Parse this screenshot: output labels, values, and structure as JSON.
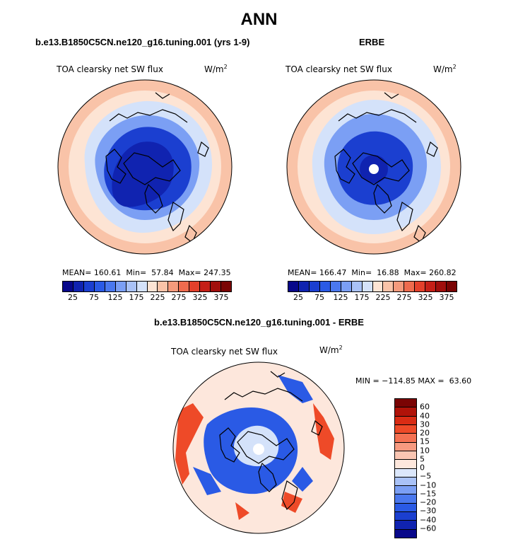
{
  "title": "ANN",
  "panels": [
    {
      "case": "b.e13.B1850C5CN.ne120_g16.tuning.001 (yrs 1-9)",
      "variable": "TOA clearsky net SW flux",
      "units_base": "W/m",
      "units_exp": "2",
      "mean_label": "MEAN=",
      "mean": "160.61",
      "min_label": "Min=",
      "min": "57.84",
      "max_label": "Max=",
      "max": "247.35"
    },
    {
      "case": "ERBE",
      "variable": "TOA clearsky net SW flux",
      "units_base": "W/m",
      "units_exp": "2",
      "mean_label": "MEAN=",
      "mean": "166.47",
      "min_label": "Min=",
      "min": "16.88",
      "max_label": "Max=",
      "max": "260.82"
    }
  ],
  "diff": {
    "case": "b.e13.B1850C5CN.ne120_g16.tuning.001 - ERBE",
    "variable": "TOA clearsky net SW flux",
    "units_base": "W/m",
    "units_exp": "2",
    "minmax": "MIN = −114.85 MAX =  63.60"
  },
  "colorbar_abs": {
    "colors": [
      "#08088a",
      "#1023b0",
      "#1b3fd0",
      "#2a5ae5",
      "#4a78ee",
      "#7b9ff4",
      "#a9c2f7",
      "#d4e2fa",
      "#fde4d4",
      "#f9c3a8",
      "#f49a7c",
      "#ee6b4e",
      "#e3402b",
      "#c51f17",
      "#a10e0c",
      "#7a0404"
    ],
    "ticks": [
      "25",
      "75",
      "125",
      "175",
      "225",
      "275",
      "325",
      "375"
    ]
  },
  "colorbar_diff": {
    "colors": [
      "#7a0404",
      "#b01309",
      "#d92c14",
      "#ee4a28",
      "#f47152",
      "#f79a80",
      "#fac5b2",
      "#fde7dc",
      "#dbe7fb",
      "#a9c2f7",
      "#7b9ff4",
      "#4a78ee",
      "#2a5ae5",
      "#1b3fd0",
      "#1023b0",
      "#08088a"
    ],
    "ticks": [
      "60",
      "40",
      "30",
      "20",
      "15",
      "10",
      "5",
      "0",
      "−5",
      "−10",
      "−15",
      "−20",
      "−30",
      "−40",
      "−60"
    ]
  },
  "map_colors": {
    "ring_outer": "#f9c3a8",
    "ring_mid": "#fde4d4",
    "light_blue": "#d4e2fa",
    "mid_blue": "#7b9ff4",
    "deep_blue": "#1b3fd0",
    "navy": "#1023b0",
    "pole_hole": "#ffffff",
    "diff_background": "#fde7dc",
    "diff_red": "#ee4a28",
    "diff_blue": "#2a5ae5"
  }
}
